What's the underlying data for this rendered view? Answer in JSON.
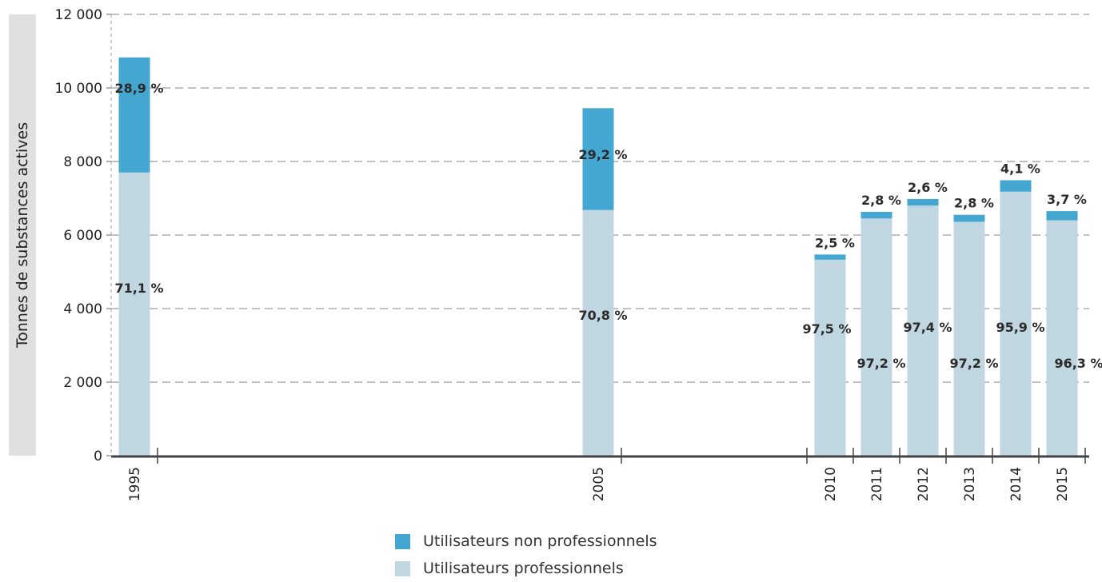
{
  "chart_data": {
    "type": "bar",
    "stacked": true,
    "title": "",
    "xlabel": "",
    "ylabel": "Tonnes de substances actives",
    "ylim": [
      0,
      12000
    ],
    "yticks": [
      0,
      2000,
      4000,
      6000,
      8000,
      10000,
      12000
    ],
    "ytick_labels": [
      "0",
      "2 000",
      "4 000",
      "6 000",
      "8 000",
      "10 000",
      "12 000"
    ],
    "grid": true,
    "legend_position": "bottom",
    "categories": [
      "1995",
      "2005",
      "2010",
      "2011",
      "2012",
      "2013",
      "2014",
      "2015"
    ],
    "series": [
      {
        "name": "Utilisateurs professionnels",
        "color": "#c0d6e0",
        "values": [
          7700,
          6680,
          5330,
          6450,
          6800,
          6360,
          7180,
          6400
        ],
        "labels": [
          "71,1 %",
          "70,8 %",
          "97,5 %",
          "97,2 %",
          "97,4 %",
          "97,2 %",
          "95,9 %",
          "96,3 %"
        ]
      },
      {
        "name": "Utilisateurs non professionnels",
        "color": "#44a7d1",
        "values": [
          3130,
          2770,
          140,
          180,
          180,
          190,
          310,
          250
        ],
        "labels": [
          "28,9 %",
          "29,2 %",
          "2,5 %",
          "2,8 %",
          "2,6 %",
          "2,8 %",
          "4,1 %",
          "3,7 %"
        ]
      }
    ]
  },
  "legend": {
    "items": [
      {
        "label": "Utilisateurs non professionnels",
        "color": "#44a7d1"
      },
      {
        "label": "Utilisateurs professionnels",
        "color": "#c0d6e0"
      }
    ]
  }
}
